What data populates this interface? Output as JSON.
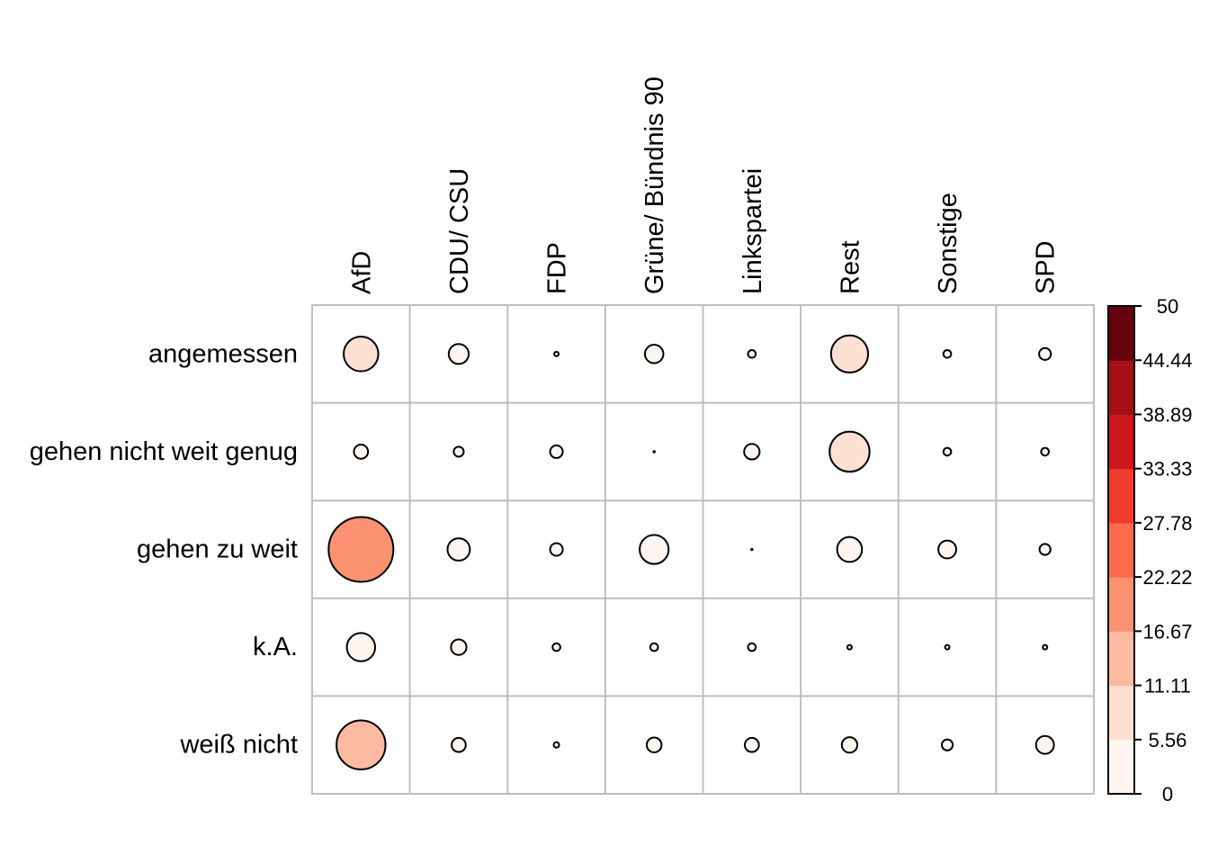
{
  "chart_data": {
    "type": "heatmap",
    "columns": [
      "AfD",
      "CDU/ CSU",
      "FDP",
      "Grüne/ Bündnis 90",
      "Linkspartei",
      "Rest",
      "Sonstige",
      "SPD"
    ],
    "rows": [
      "angemessen",
      "gehen nicht weit genug",
      "gehen zu weit",
      "k.A.",
      "weiß nicht"
    ],
    "values": [
      [
        6.0,
        2.0,
        0.1,
        1.7,
        0.3,
        6.9,
        0.3,
        0.7
      ],
      [
        1.0,
        0.5,
        0.8,
        0.05,
        1.2,
        8.0,
        0.3,
        0.3
      ],
      [
        21.0,
        2.5,
        0.8,
        4.2,
        0.05,
        3.1,
        1.6,
        0.6
      ],
      [
        4.0,
        1.2,
        0.3,
        0.3,
        0.3,
        0.1,
        0.1,
        0.1
      ],
      [
        12.0,
        1.0,
        0.15,
        1.1,
        1.0,
        1.2,
        0.6,
        1.6
      ]
    ],
    "colorbar": {
      "min": 0,
      "max": 50,
      "ticks": [
        "0",
        "5.56",
        "11.11",
        "16.67",
        "22.22",
        "27.78",
        "33.33",
        "38.89",
        "44.44",
        "50"
      ],
      "colors": [
        "#fff5f0",
        "#fee0d2",
        "#fcbba1",
        "#fc9272",
        "#fb6a4a",
        "#ef3b2c",
        "#cb181d",
        "#a50f15",
        "#67000d"
      ]
    },
    "circle_fill_colors": [
      "#fff5f0",
      "#fee0d2",
      "#fcbba1",
      "#fc9272",
      "#fb6a4a",
      "#ef3b2c",
      "#cb181d",
      "#a50f15",
      "#67000d"
    ]
  }
}
